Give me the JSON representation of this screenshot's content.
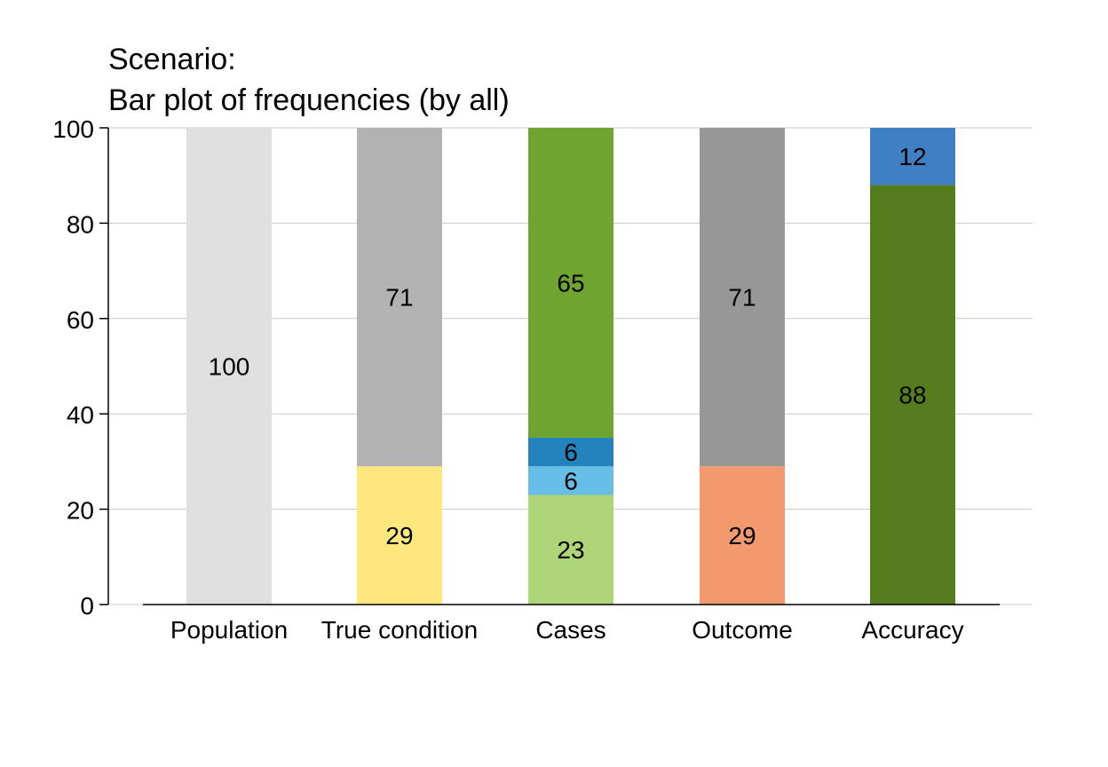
{
  "chart_data": {
    "type": "bar",
    "title_line1": "Scenario:",
    "title_line2": "Bar plot of frequencies (by all)",
    "xlabel": "",
    "ylabel": "",
    "ylim": [
      0,
      100
    ],
    "yticks": [
      0,
      20,
      40,
      60,
      80,
      100
    ],
    "grid": true,
    "categories": [
      "Population",
      "True condition",
      "Cases",
      "Outcome",
      "Accuracy"
    ],
    "stacks": [
      [
        {
          "value": 100,
          "label": "100",
          "color": "#E0E0E0"
        }
      ],
      [
        {
          "value": 29,
          "label": "29",
          "color": "#FFE77D"
        },
        {
          "value": 71,
          "label": "71",
          "color": "#B2B2B2"
        }
      ],
      [
        {
          "value": 23,
          "label": "23",
          "color": "#AED577"
        },
        {
          "value": 6,
          "label": "6",
          "color": "#66BEE6"
        },
        {
          "value": 6,
          "label": "6",
          "color": "#2384BD"
        },
        {
          "value": 65,
          "label": "65",
          "color": "#6FA42F"
        }
      ],
      [
        {
          "value": 29,
          "label": "29",
          "color": "#F3996E"
        },
        {
          "value": 71,
          "label": "71",
          "color": "#979797"
        }
      ],
      [
        {
          "value": 88,
          "label": "88",
          "color": "#557D1D"
        },
        {
          "value": 12,
          "label": "12",
          "color": "#3F80C4"
        }
      ]
    ]
  }
}
